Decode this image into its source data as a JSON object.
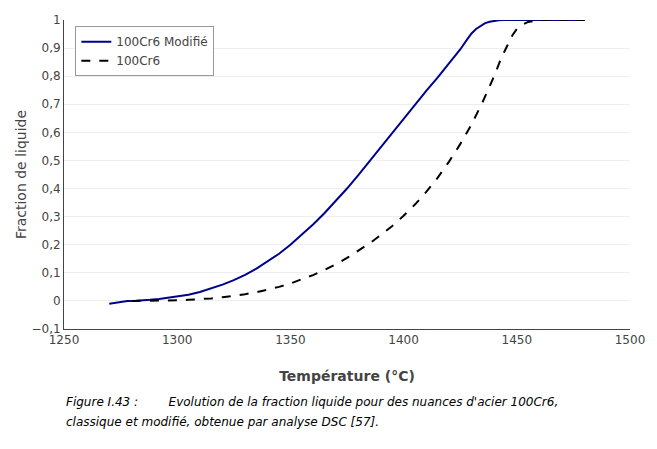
{
  "chart_data": {
    "type": "line",
    "xlabel": "Température (°C)",
    "ylabel": "Fraction de liquide",
    "xlim": [
      1250,
      1500
    ],
    "ylim": [
      -0.1,
      1
    ],
    "xticks": [
      1250,
      1300,
      1350,
      1400,
      1450,
      1500
    ],
    "yticks": [
      {
        "value": -0.1,
        "label": "−0,1"
      },
      0,
      {
        "value": 0.1,
        "label": "0,1"
      },
      {
        "value": 0.2,
        "label": "0,2"
      },
      {
        "value": 0.3,
        "label": "0,3"
      },
      {
        "value": 0.4,
        "label": "0,4"
      },
      {
        "value": 0.5,
        "label": "0,5"
      },
      {
        "value": 0.6,
        "label": "0,6"
      },
      {
        "value": 0.7,
        "label": "0,7"
      },
      {
        "value": 0.8,
        "label": "0,8"
      },
      {
        "value": 0.9,
        "label": "0,9"
      },
      1
    ],
    "grid": "y",
    "legend": "upper left",
    "annotations": [
      "Figure I.43 :        Evolution de la fraction liquide pour des nuances d'acier 100Cr6,",
      "classique et modifié, obtenue par analyse DSC [57]."
    ],
    "series": [
      {
        "name": "100Cr6 Modifié",
        "color": "#00008B",
        "line_style": "solid",
        "x": [
          1270,
          1278,
          1282,
          1285,
          1288,
          1292,
          1295,
          1300,
          1305,
          1310,
          1315,
          1320,
          1325,
          1330,
          1335,
          1340,
          1345,
          1350,
          1355,
          1360,
          1365,
          1370,
          1375,
          1380,
          1385,
          1390,
          1395,
          1400,
          1405,
          1410,
          1415,
          1420,
          1425,
          1428,
          1430,
          1432,
          1434,
          1436,
          1438,
          1440,
          1442,
          1444,
          1445,
          1447,
          1450,
          1460,
          1470,
          1480
        ],
        "values": [
          -0.01,
          0.0,
          0.001,
          0.002,
          0.004,
          0.007,
          0.01,
          0.015,
          0.022,
          0.032,
          0.044,
          0.058,
          0.074,
          0.093,
          0.115,
          0.14,
          0.168,
          0.2,
          0.235,
          0.272,
          0.312,
          0.355,
          0.4,
          0.448,
          0.498,
          0.55,
          0.6,
          0.652,
          0.7,
          0.748,
          0.795,
          0.845,
          0.895,
          0.93,
          0.952,
          0.968,
          0.98,
          0.989,
          0.994,
          0.997,
          0.999,
          1.0,
          1.0,
          1.0,
          1.0,
          1.0,
          1.0,
          1.0
        ]
      },
      {
        "name": "100Cr6",
        "color": "#000000",
        "line_style": "dashed",
        "x": [
          1280,
          1290,
          1295,
          1300,
          1305,
          1310,
          1315,
          1320,
          1325,
          1330,
          1335,
          1340,
          1345,
          1350,
          1355,
          1360,
          1365,
          1370,
          1375,
          1380,
          1385,
          1390,
          1395,
          1400,
          1405,
          1410,
          1415,
          1420,
          1425,
          1430,
          1435,
          1440,
          1443,
          1446,
          1448,
          1450,
          1453,
          1455,
          1458,
          1460,
          1465,
          1470,
          1475,
          1480
        ],
        "values": [
          0.0,
          0.0,
          0.001,
          0.002,
          0.004,
          0.006,
          0.009,
          0.013,
          0.018,
          0.024,
          0.031,
          0.04,
          0.05,
          0.062,
          0.076,
          0.092,
          0.11,
          0.13,
          0.153,
          0.178,
          0.205,
          0.235,
          0.267,
          0.303,
          0.343,
          0.388,
          0.438,
          0.495,
          0.558,
          0.628,
          0.71,
          0.8,
          0.862,
          0.912,
          0.945,
          0.968,
          0.985,
          0.993,
          0.998,
          1.0,
          1.0,
          1.0,
          1.0,
          1.0
        ]
      }
    ]
  }
}
